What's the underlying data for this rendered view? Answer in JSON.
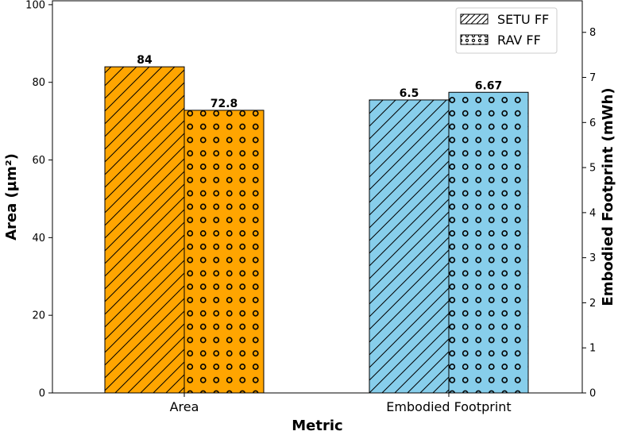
{
  "chart_data": {
    "type": "bar",
    "categories": [
      "Area",
      "Embodied Footprint"
    ],
    "series": [
      {
        "name": "SETU FF",
        "pattern": "hatch",
        "values": [
          84,
          6.5
        ],
        "labels": [
          "84",
          "6.5"
        ]
      },
      {
        "name": "RAV FF",
        "pattern": "dots",
        "values": [
          72.8,
          6.67
        ],
        "labels": [
          "72.8",
          "6.67"
        ]
      }
    ],
    "axis_for_category": [
      "left",
      "right"
    ],
    "category_colors": [
      "#ffa500",
      "#87ceeb"
    ],
    "xlabel": "Metric",
    "ylabel_left": "Area (µm²)",
    "ylabel_right": "Embodied Footprint (mWh)",
    "ylim_left": [
      0,
      101
    ],
    "yticks_left": [
      0,
      20,
      40,
      60,
      80,
      100
    ],
    "ylim_right": [
      0,
      8.7
    ],
    "yticks_right": [
      0,
      1,
      2,
      3,
      4,
      5,
      6,
      7,
      8
    ],
    "grid": false,
    "legend_position": "top-right"
  }
}
